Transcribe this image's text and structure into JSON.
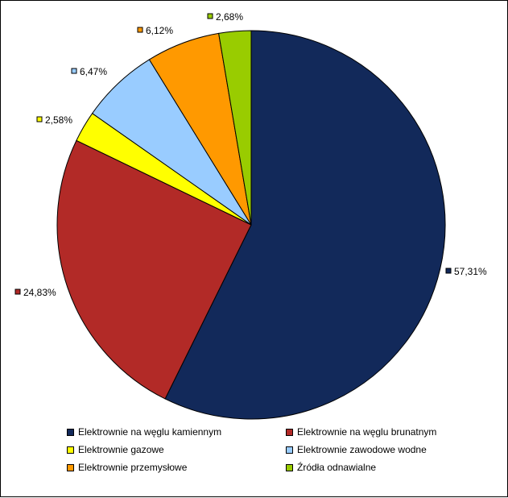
{
  "chart_data": {
    "type": "pie",
    "series": [
      {
        "name": "Elektrownie na węglu kamiennym",
        "value": 57.31,
        "label": "57,31%",
        "color": "#12295A"
      },
      {
        "name": "Elektrownie na węglu brunatnym",
        "value": 24.83,
        "label": "24,83%",
        "color": "#B22A27"
      },
      {
        "name": "Elektrownie gazowe",
        "value": 2.58,
        "label": "2,58%",
        "color": "#FFFF00"
      },
      {
        "name": "Elektrownie zawodowe wodne",
        "value": 6.47,
        "label": "6,47%",
        "color": "#99CCFF"
      },
      {
        "name": "Elektrownie przemysłowe",
        "value": 6.12,
        "label": "6,12%",
        "color": "#FF9900"
      },
      {
        "name": "Źródła odnawialne",
        "value": 2.68,
        "label": "2,68%",
        "color": "#99CC00"
      }
    ],
    "start_angle": "12 o'clock",
    "direction": "clockwise",
    "legend_position": "bottom"
  }
}
